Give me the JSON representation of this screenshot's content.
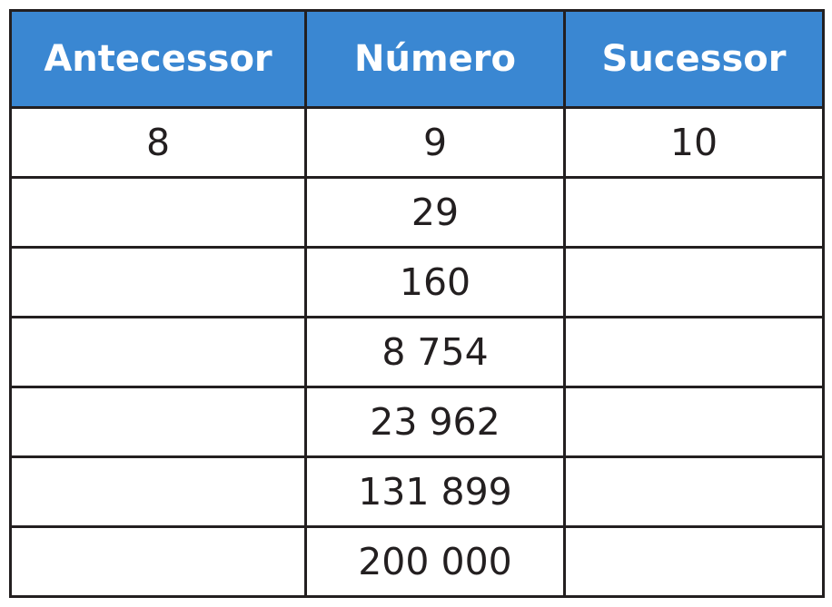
{
  "table": {
    "headers": [
      "Antecessor",
      "Número",
      "Sucessor"
    ],
    "rows": [
      {
        "antecessor": "8",
        "numero": "9",
        "sucessor": "10"
      },
      {
        "antecessor": "",
        "numero": "29",
        "sucessor": ""
      },
      {
        "antecessor": "",
        "numero": "160",
        "sucessor": ""
      },
      {
        "antecessor": "",
        "numero": "8 754",
        "sucessor": ""
      },
      {
        "antecessor": "",
        "numero": "23 962",
        "sucessor": ""
      },
      {
        "antecessor": "",
        "numero": "131 899",
        "sucessor": ""
      },
      {
        "antecessor": "",
        "numero": "200 000",
        "sucessor": ""
      }
    ]
  },
  "colors": {
    "header_background": "#3a87d2",
    "header_text": "#ffffff",
    "border": "#231f20",
    "cell_text": "#231f20"
  }
}
